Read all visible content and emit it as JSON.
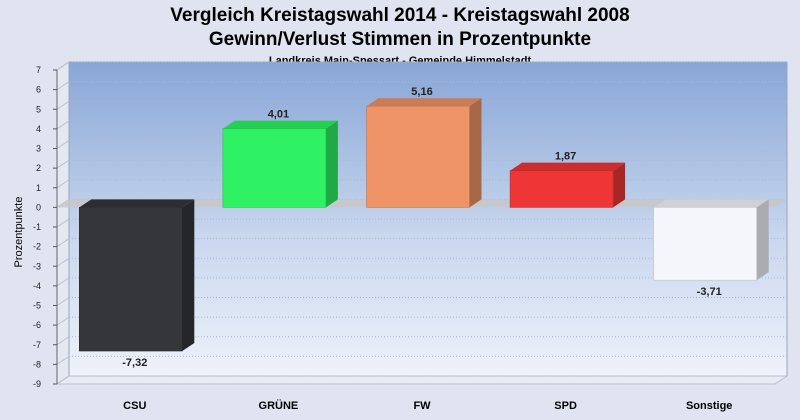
{
  "title_line1": "Vergleich Kreistagswahl 2014 - Kreistagswahl 2008",
  "title_line2": "Gewinn/Verlust Stimmen in Prozentpunkte",
  "subtitle": "Landkreis Main-Spessart - Gemeinde Himmelstadt",
  "chart_data": {
    "type": "bar",
    "title": "Vergleich Kreistagswahl 2014 - Kreistagswahl 2008 / Gewinn/Verlust Stimmen in Prozentpunkte",
    "subtitle": "Landkreis Main-Spessart - Gemeinde Himmelstadt",
    "xlabel": "",
    "ylabel": "Prozentpunkte",
    "ylim": [
      -9,
      7
    ],
    "yticks": [
      7,
      6,
      5,
      4,
      3,
      2,
      1,
      0,
      -1,
      -2,
      -3,
      -4,
      -5,
      -6,
      -7,
      -8,
      -9
    ],
    "grid": true,
    "categories": [
      "CSU",
      "GRÜNE",
      "FW",
      "SPD",
      "Sonstige"
    ],
    "values": [
      -7.32,
      4.01,
      5.16,
      1.87,
      -3.71
    ],
    "value_labels": [
      "-7,32",
      "4,01",
      "5,16",
      "1,87",
      "-3,71"
    ],
    "colors": [
      "#34363a",
      "#2ef263",
      "#ee9466",
      "#ee3636",
      "#f4f6fb"
    ]
  }
}
